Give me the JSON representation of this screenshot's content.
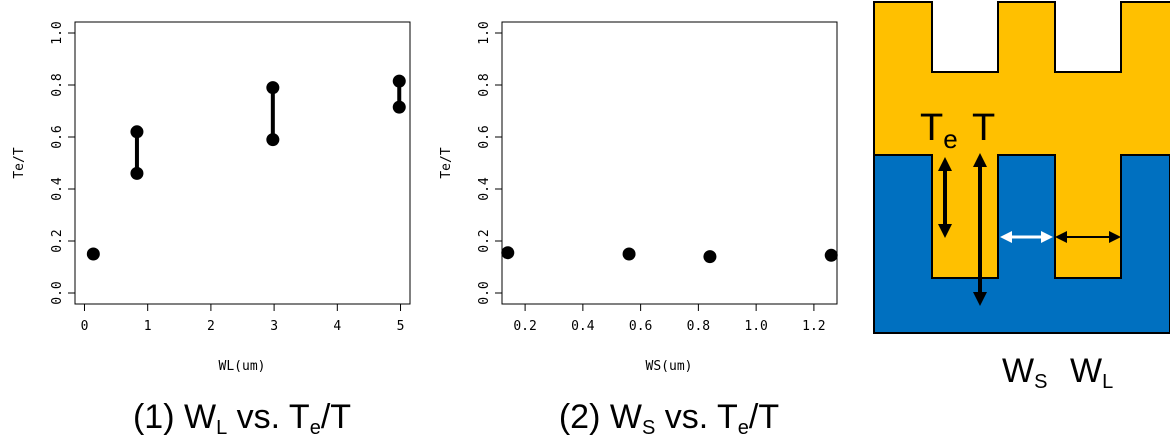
{
  "chart_data": [
    {
      "type": "scatter",
      "xlabel": "WL(um)",
      "ylabel": "Te/T",
      "xlim": [
        -0.15,
        5.15
      ],
      "ylim": [
        0.0,
        1.0
      ],
      "xticks": [
        "0",
        "1",
        "2",
        "3",
        "4",
        "5"
      ],
      "yticks": [
        "0.0",
        "0.2",
        "0.4",
        "0.6",
        "0.8",
        "1.0"
      ],
      "points": [
        {
          "x": 0.14,
          "y": 0.15
        },
        {
          "x": 0.83,
          "y": 0.62
        },
        {
          "x": 0.83,
          "y": 0.46
        },
        {
          "x": 2.98,
          "y": 0.79
        },
        {
          "x": 2.98,
          "y": 0.59
        },
        {
          "x": 4.98,
          "y": 0.815
        },
        {
          "x": 4.98,
          "y": 0.715
        }
      ],
      "ranges": [
        {
          "x": 0.83,
          "y_low": 0.46,
          "y_high": 0.62
        },
        {
          "x": 2.98,
          "y_low": 0.59,
          "y_high": 0.79
        },
        {
          "x": 4.98,
          "y_low": 0.715,
          "y_high": 0.815
        }
      ],
      "grid": false,
      "caption": {
        "prefix": "(1) W",
        "sub1": "L",
        "mid": " vs. T",
        "sub2": "e",
        "suffix": "/T"
      }
    },
    {
      "type": "scatter",
      "xlabel": "WS(um)",
      "ylabel": "Te/T",
      "xlim": [
        0.12,
        1.28
      ],
      "ylim": [
        0.0,
        1.0
      ],
      "xticks": [
        "0.2",
        "0.4",
        "0.6",
        "0.8",
        "1.0",
        "1.2"
      ],
      "yticks": [
        "0.0",
        "0.2",
        "0.4",
        "0.6",
        "0.8",
        "1.0"
      ],
      "points": [
        {
          "x": 0.14,
          "y": 0.155
        },
        {
          "x": 0.56,
          "y": 0.15
        },
        {
          "x": 0.84,
          "y": 0.14
        },
        {
          "x": 1.26,
          "y": 0.145
        }
      ],
      "grid": false,
      "caption": {
        "prefix": "(2) W",
        "sub1": "S",
        "mid": " vs. T",
        "sub2": "e",
        "suffix": "/T"
      }
    }
  ],
  "diagram": {
    "colors": {
      "top_layer": "#ffc000",
      "bottom_layer": "#0070c0",
      "outline": "#000000"
    },
    "labels": {
      "te_main": "T",
      "te_sub": "e",
      "t": "T",
      "ws_main": "W",
      "ws_sub": "S",
      "wl_main": "W",
      "wl_sub": "L"
    }
  }
}
